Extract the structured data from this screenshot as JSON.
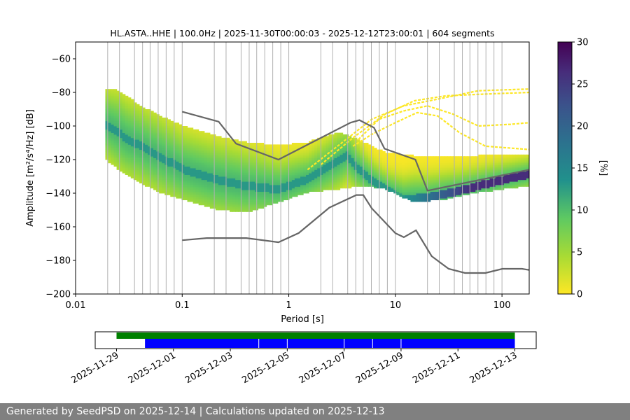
{
  "chart_data": [
    {
      "type": "heatmap",
      "title": "HL.ASTA..HHE | 100.0Hz | 2025-11-30T00:00:03 - 2025-12-12T23:00:01 | 604 segments",
      "xlabel": "Period [s]",
      "ylabel": "Amplitude [m²/s⁴/Hz] [dB]",
      "x_scale": "log",
      "xlim": [
        0.01,
        180
      ],
      "ylim": [
        -200,
        -50
      ],
      "x_ticks": [
        "0.01",
        "0.1",
        "1",
        "10",
        "100"
      ],
      "y_ticks": [
        "−60",
        "−80",
        "−100",
        "−120",
        "−140",
        "−160",
        "−180",
        "−200"
      ],
      "grid": "vertical lines at frequency bins",
      "colorbar": {
        "label": "[%]",
        "range": [
          0,
          30
        ],
        "ticks": [
          "0",
          "5",
          "10",
          "15",
          "20",
          "25",
          "30"
        ],
        "colormap": "viridis_r"
      },
      "density_mode_curve": {
        "period": [
          0.02,
          0.025,
          0.03,
          0.04,
          0.06,
          0.1,
          0.2,
          0.4,
          0.8,
          1.5,
          2.5,
          3.5,
          4.5,
          6,
          8,
          12,
          20,
          40,
          80,
          180
        ],
        "db": [
          -100,
          -104,
          -108,
          -112,
          -118,
          -126,
          -132,
          -136,
          -138,
          -132,
          -124,
          -118,
          -126,
          -133,
          -138,
          -144,
          -143,
          -139,
          -134,
          -129
        ]
      },
      "density_band": {
        "period": [
          0.019,
          0.025,
          0.04,
          0.06,
          0.1,
          0.2,
          0.4,
          0.8,
          1.5,
          3,
          5,
          8,
          15,
          30,
          60,
          180
        ],
        "upper_db": [
          -79,
          -79,
          -88,
          -94,
          -100,
          -106,
          -110,
          -112,
          -110,
          -104,
          -110,
          -116,
          -118,
          -119,
          -118,
          -117
        ],
        "lower_db": [
          -120,
          -126,
          -134,
          -140,
          -144,
          -150,
          -152,
          -146,
          -140,
          -138,
          -136,
          -138,
          -146,
          -144,
          -140,
          -136
        ]
      },
      "nhnm": {
        "period": [
          0.1,
          0.22,
          0.32,
          0.8,
          3.8,
          4.6,
          6.3,
          7.9,
          15.4,
          20,
          180
        ],
        "db": [
          -91.5,
          -97.4,
          -110.5,
          -120,
          -98,
          -96.5,
          -101,
          -113.5,
          -120,
          -138.5,
          -126
        ]
      },
      "nlnm": {
        "period": [
          0.1,
          0.17,
          0.4,
          0.8,
          1.24,
          2.4,
          4.3,
          5,
          6,
          10,
          12,
          15.6,
          21.9,
          31.6,
          45,
          70,
          101,
          154,
          180
        ],
        "db": [
          -168,
          -166.7,
          -166.7,
          -169.2,
          -163.7,
          -148.6,
          -141.1,
          -141.1,
          -149,
          -163.8,
          -166.2,
          -162.1,
          -177.5,
          -185,
          -187.5,
          -187.5,
          -185,
          -185,
          -185.7
        ]
      },
      "outlier_traces": [
        {
          "period": [
            1.5,
            3,
            6,
            12,
            25,
            60,
            180
          ],
          "db": [
            -126,
            -111,
            -96,
            -88,
            -84,
            -79,
            -78
          ]
        },
        {
          "period": [
            2,
            4,
            8,
            15,
            30,
            70,
            180
          ],
          "db": [
            -123,
            -107,
            -93,
            -85,
            -82,
            -81,
            -80
          ]
        },
        {
          "period": [
            4,
            6,
            10,
            16,
            25,
            40,
            70,
            180
          ],
          "db": [
            -112,
            -105,
            -98,
            -92,
            -94,
            -104,
            -112,
            -114
          ]
        },
        {
          "period": [
            4.5,
            7,
            12,
            20,
            35,
            60,
            120,
            180
          ],
          "db": [
            -108,
            -96,
            -91,
            -88,
            -93,
            -100,
            -99,
            -98
          ]
        }
      ]
    },
    {
      "type": "timeline",
      "x_ticks": [
        "2025-11-29",
        "2025-12-01",
        "2025-12-03",
        "2025-12-05",
        "2025-12-07",
        "2025-12-09",
        "2025-12-11",
        "2025-12-13"
      ],
      "green_bar": {
        "start": "2025-11-29T00:00",
        "end": "2025-12-13T00:00"
      },
      "blue_bar": {
        "start": "2025-11-30T00:00",
        "end": "2025-12-13T00:00"
      },
      "blue_gaps": [
        "2025-12-04T00:00",
        "2025-12-05T00:00",
        "2025-12-07T00:00",
        "2025-12-08T00:00",
        "2025-12-09T00:00"
      ],
      "colors": {
        "green": "#008000",
        "blue": "#0000ff"
      }
    }
  ],
  "footer": {
    "text": "Generated by SeedPSD on 2025-12-14 | Calculations updated on 2025-12-13"
  }
}
